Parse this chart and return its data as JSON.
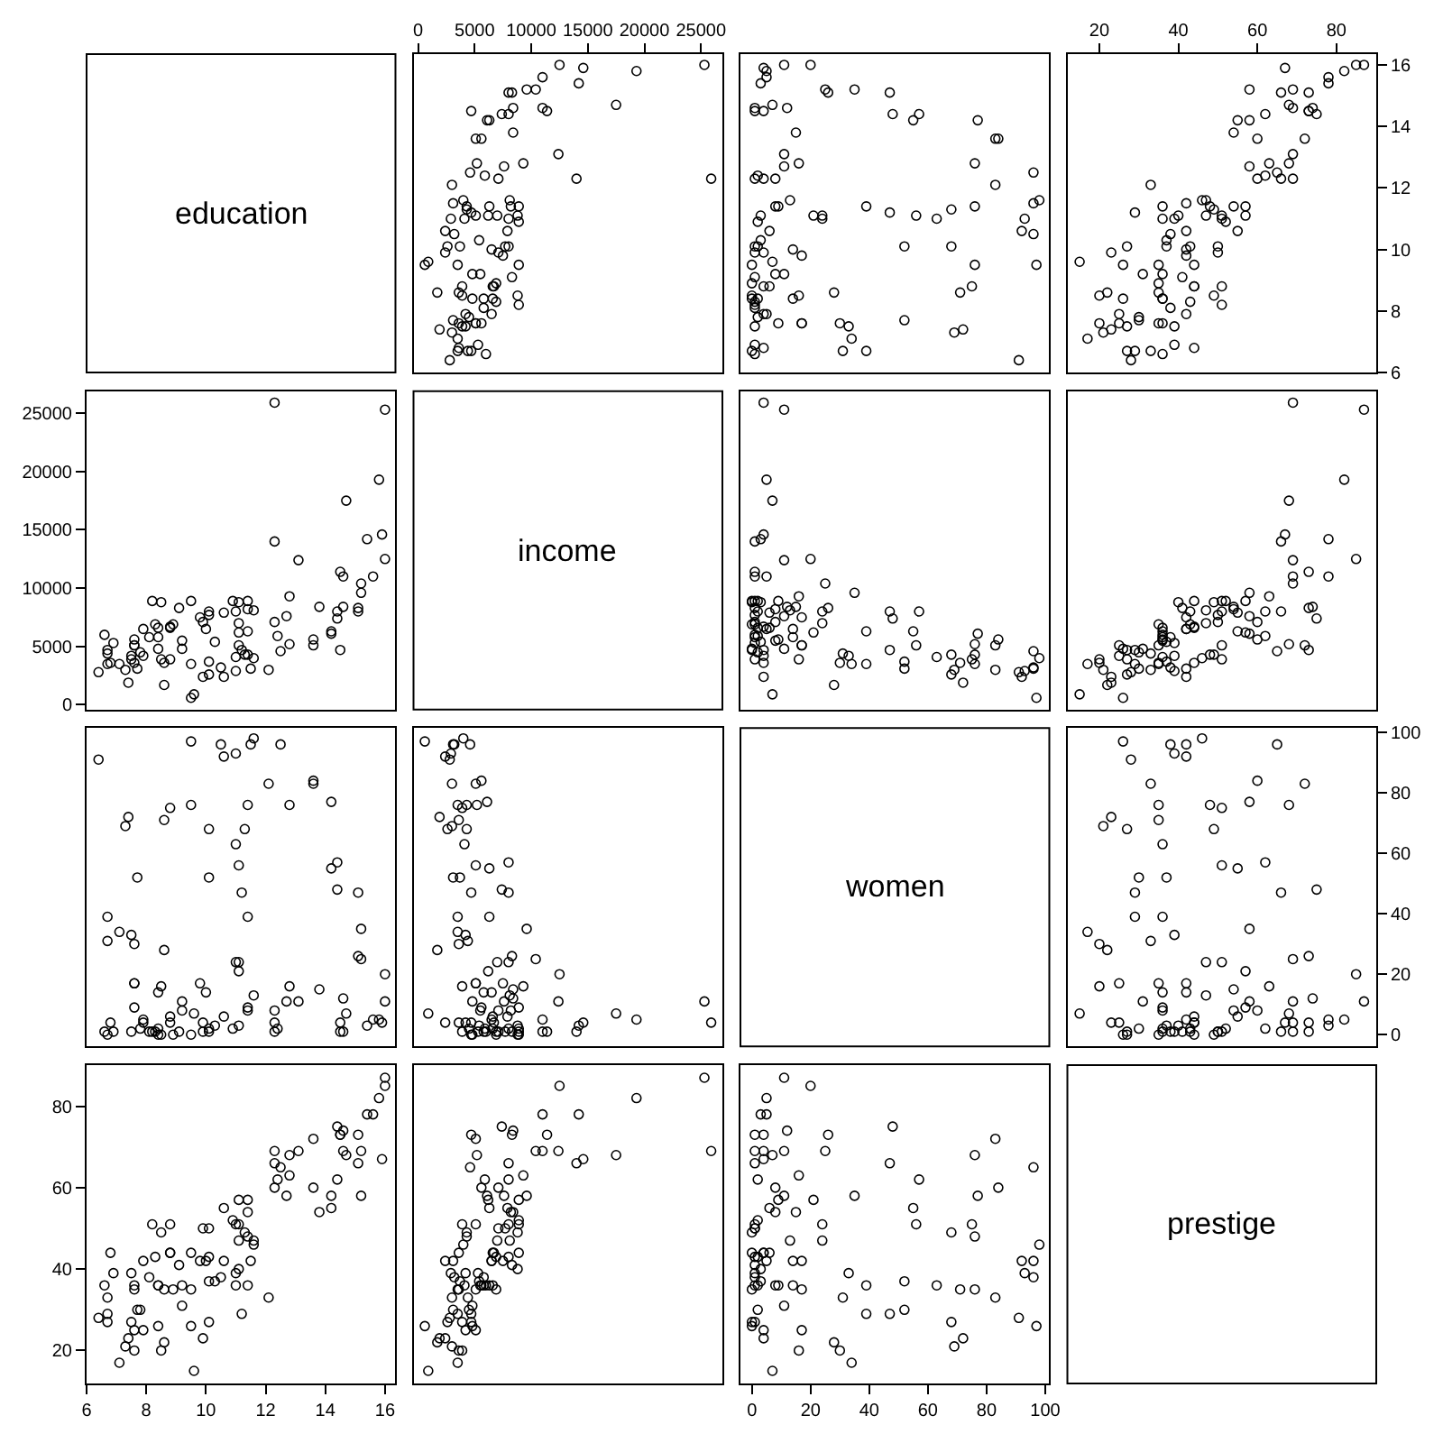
{
  "chart_data": [
    {
      "type": "other",
      "title": "education"
    },
    {
      "type": "scatter",
      "marker": "circle",
      "color": "#000000",
      "tick_labels": "x",
      "xlim": [
        -400,
        26890
      ],
      "ylim": [
        6.0,
        16.35
      ],
      "xticks": [
        0,
        5000,
        10000,
        15000,
        20000,
        25000
      ],
      "yticks": [
        6,
        8,
        10,
        12,
        14,
        16
      ],
      "x": [
        12400,
        25900,
        9300,
        8900,
        8400,
        11000,
        8300,
        14200,
        11400,
        11000,
        5900,
        7100,
        8400,
        8000,
        7400,
        6300,
        19300,
        6100,
        9600,
        4700,
        12500,
        5600,
        8000,
        25300,
        14600,
        17500,
        4600,
        3500,
        5100,
        10400,
        5200,
        6200,
        7600,
        8200,
        4000,
        3100,
        4300,
        2400,
        4300,
        4800,
        3000,
        2900,
        5500,
        3700,
        3200,
        4700,
        5100,
        6300,
        4100,
        7500,
        8800,
        2600,
        900,
        2400,
        8100,
        7000,
        8000,
        8900,
        8900,
        3100,
        3900,
        7900,
        600,
        3000,
        3500,
        3600,
        3600,
        1700,
        6900,
        4200,
        5100,
        5100,
        1900,
        4400,
        3500,
        8000,
        6700,
        6600,
        6500,
        5800,
        6600,
        3900,
        5400,
        2800,
        5800,
        7700,
        4700,
        8300,
        7100,
        8900,
        5300,
        6000,
        4500,
        6900,
        3900,
        14000,
        8800,
        5600,
        4200,
        4800,
        6500,
        3600
      ],
      "values": [
        13.1,
        12.3,
        12.8,
        11.4,
        14.6,
        15.6,
        15.1,
        15.4,
        14.5,
        14.6,
        12.4,
        12.3,
        13.8,
        14.4,
        14.4,
        14.2,
        15.8,
        14.2,
        15.2,
        14.5,
        16.0,
        13.6,
        15.1,
        16.0,
        15.9,
        14.7,
        12.5,
        9.5,
        13.6,
        15.2,
        12.8,
        11.1,
        12.7,
        11.4,
        11.6,
        11.5,
        11.3,
        10.6,
        11.4,
        9.2,
        12.1,
        11.0,
        9.2,
        10.1,
        10.5,
        11.2,
        11.1,
        11.4,
        11.0,
        9.8,
        11.1,
        10.1,
        9.6,
        9.9,
        11.6,
        11.1,
        11.0,
        9.5,
        10.9,
        7.7,
        8.5,
        10.6,
        9.5,
        7.3,
        7.1,
        7.6,
        6.8,
        8.6,
        8.9,
        7.5,
        7.6,
        7.6,
        7.4,
        6.7,
        6.7,
        10.1,
        8.8,
        8.4,
        7.9,
        8.4,
        8.8,
        8.8,
        10.3,
        6.4,
        8.1,
        10.1,
        6.7,
        9.1,
        9.9,
        8.2,
        6.9,
        6.6,
        7.8,
        8.3,
        7.5,
        12.3,
        8.5,
        7.6,
        7.9,
        8.4,
        10.0,
        8.6
      ]
    },
    {
      "type": "scatter",
      "marker": "circle",
      "color": "#000000",
      "tick_labels": false,
      "xlim": [
        -3.9,
        101.4
      ],
      "ylim": [
        6.0,
        16.35
      ],
      "xticks": [
        0,
        20,
        40,
        60,
        80,
        100
      ],
      "yticks": [
        6,
        8,
        10,
        12,
        14,
        16
      ],
      "x": [
        11,
        4,
        16,
        9,
        12,
        5,
        26,
        3,
        1,
        1,
        2,
        8,
        15,
        57,
        48,
        55,
        5,
        77,
        35,
        4,
        20,
        84,
        47,
        11,
        4,
        7,
        96,
        76,
        83,
        25,
        76,
        21,
        11,
        8,
        98,
        96,
        68,
        92,
        76,
        11,
        83,
        93,
        8,
        52,
        96,
        47,
        56,
        39,
        63,
        17,
        3,
        68,
        7,
        4,
        13,
        24,
        24,
        0,
        2,
        52,
        16,
        6,
        97,
        69,
        34,
        30,
        4,
        28,
        0,
        33,
        17,
        17,
        72,
        31,
        39,
        2,
        4,
        2,
        5,
        14,
        6,
        75,
        3,
        91,
        1,
        1,
        0,
        1,
        1,
        1,
        1,
        1,
        2,
        1,
        1,
        1,
        0,
        9,
        4,
        0,
        14,
        71
      ],
      "values": [
        13.1,
        12.3,
        12.8,
        11.4,
        14.6,
        15.6,
        15.1,
        15.4,
        14.5,
        14.6,
        12.4,
        12.3,
        13.8,
        14.4,
        14.4,
        14.2,
        15.8,
        14.2,
        15.2,
        14.5,
        16.0,
        13.6,
        15.1,
        16.0,
        15.9,
        14.7,
        12.5,
        9.5,
        13.6,
        15.2,
        12.8,
        11.1,
        12.7,
        11.4,
        11.6,
        11.5,
        11.3,
        10.6,
        11.4,
        9.2,
        12.1,
        11.0,
        9.2,
        10.1,
        10.5,
        11.2,
        11.1,
        11.4,
        11.0,
        9.8,
        11.1,
        10.1,
        9.6,
        9.9,
        11.6,
        11.1,
        11.0,
        9.5,
        10.9,
        7.7,
        8.5,
        10.6,
        9.5,
        7.3,
        7.1,
        7.6,
        6.8,
        8.6,
        8.9,
        7.5,
        7.6,
        7.6,
        7.4,
        6.7,
        6.7,
        10.1,
        8.8,
        8.4,
        7.9,
        8.4,
        8.8,
        8.8,
        10.3,
        6.4,
        8.1,
        10.1,
        6.7,
        9.1,
        9.9,
        8.2,
        6.9,
        6.6,
        7.8,
        8.3,
        7.5,
        12.3,
        8.5,
        7.6,
        7.9,
        8.4,
        10.0,
        8.6
      ]
    },
    {
      "type": "scatter",
      "marker": "circle",
      "color": "#000000",
      "xlim": [
        11.9,
        90.1
      ],
      "ylim": [
        6.0,
        16.35
      ],
      "xticks": [
        20,
        40,
        60,
        80
      ],
      "yticks": [
        6,
        8,
        10,
        12,
        14,
        16
      ],
      "x": [
        69,
        69,
        63,
        57,
        74,
        78,
        73,
        78,
        73,
        69,
        62,
        60,
        54,
        62,
        75,
        55,
        82,
        58,
        58,
        73,
        85,
        60,
        66,
        87,
        67,
        68,
        65,
        35,
        72,
        69,
        68,
        57,
        58,
        54,
        46,
        42,
        49,
        42,
        48,
        31,
        33,
        39,
        36,
        37,
        38,
        29,
        51,
        36,
        36,
        42,
        40,
        27,
        15,
        23,
        47,
        47,
        51,
        44,
        52,
        30,
        20,
        55,
        26,
        21,
        17,
        20,
        44,
        22,
        35,
        39,
        25,
        35,
        23,
        33,
        29,
        43,
        44,
        36,
        42,
        36,
        44,
        51,
        37,
        28,
        38,
        50,
        27,
        41,
        50,
        51,
        39,
        36,
        30,
        43,
        27,
        66,
        49,
        36,
        25,
        26,
        42,
        35
      ],
      "values": [
        13.1,
        12.3,
        12.8,
        11.4,
        14.6,
        15.6,
        15.1,
        15.4,
        14.5,
        14.6,
        12.4,
        12.3,
        13.8,
        14.4,
        14.4,
        14.2,
        15.8,
        14.2,
        15.2,
        14.5,
        16.0,
        13.6,
        15.1,
        16.0,
        15.9,
        14.7,
        12.5,
        9.5,
        13.6,
        15.2,
        12.8,
        11.1,
        12.7,
        11.4,
        11.6,
        11.5,
        11.3,
        10.6,
        11.4,
        9.2,
        12.1,
        11.0,
        9.2,
        10.1,
        10.5,
        11.2,
        11.1,
        11.4,
        11.0,
        9.8,
        11.1,
        10.1,
        9.6,
        9.9,
        11.6,
        11.1,
        11.0,
        9.5,
        10.9,
        7.7,
        8.5,
        10.6,
        9.5,
        7.3,
        7.1,
        7.6,
        6.8,
        8.6,
        8.9,
        7.5,
        7.6,
        7.6,
        7.4,
        6.7,
        6.7,
        10.1,
        8.8,
        8.4,
        7.9,
        8.4,
        8.8,
        8.8,
        10.3,
        6.4,
        8.1,
        10.1,
        6.7,
        9.1,
        9.9,
        8.2,
        6.9,
        6.6,
        7.8,
        8.3,
        7.5,
        12.3,
        8.5,
        7.6,
        7.9,
        8.4,
        10.0,
        8.6
      ]
    },
    {
      "type": "scatter",
      "marker": "circle",
      "color": "#000000",
      "tick_labels": "y",
      "xlim": [
        6.0,
        16.35
      ],
      "ylim": [
        -400,
        26890
      ],
      "xticks": [
        6,
        8,
        10,
        12,
        14,
        16
      ],
      "yticks": [
        0,
        5000,
        10000,
        15000,
        20000,
        25000
      ],
      "x": [
        13.1,
        12.3,
        12.8,
        11.4,
        14.6,
        15.6,
        15.1,
        15.4,
        14.5,
        14.6,
        12.4,
        12.3,
        13.8,
        14.4,
        14.4,
        14.2,
        15.8,
        14.2,
        15.2,
        14.5,
        16.0,
        13.6,
        15.1,
        16.0,
        15.9,
        14.7,
        12.5,
        9.5,
        13.6,
        15.2,
        12.8,
        11.1,
        12.7,
        11.4,
        11.6,
        11.5,
        11.3,
        10.6,
        11.4,
        9.2,
        12.1,
        11.0,
        9.2,
        10.1,
        10.5,
        11.2,
        11.1,
        11.4,
        11.0,
        9.8,
        11.1,
        10.1,
        9.6,
        9.9,
        11.6,
        11.1,
        11.0,
        9.5,
        10.9,
        7.7,
        8.5,
        10.6,
        9.5,
        7.3,
        7.1,
        7.6,
        6.8,
        8.6,
        8.9,
        7.5,
        7.6,
        7.6,
        7.4,
        6.7,
        6.7,
        10.1,
        8.8,
        8.4,
        7.9,
        8.4,
        8.8,
        8.8,
        10.3,
        6.4,
        8.1,
        10.1,
        6.7,
        9.1,
        9.9,
        8.2,
        6.9,
        6.6,
        7.8,
        8.3,
        7.5,
        12.3,
        8.5,
        7.6,
        7.9,
        8.4,
        10.0,
        8.6
      ],
      "values": [
        12400,
        25900,
        9300,
        8900,
        8400,
        11000,
        8300,
        14200,
        11400,
        11000,
        5900,
        7100,
        8400,
        8000,
        7400,
        6300,
        19300,
        6100,
        9600,
        4700,
        12500,
        5600,
        8000,
        25300,
        14600,
        17500,
        4600,
        3500,
        5100,
        10400,
        5200,
        6200,
        7600,
        8200,
        4000,
        3100,
        4300,
        2400,
        4300,
        4800,
        3000,
        2900,
        5500,
        3700,
        3200,
        4700,
        5100,
        6300,
        4100,
        7500,
        8800,
        2600,
        900,
        2400,
        8100,
        7000,
        8000,
        8900,
        8900,
        3100,
        3900,
        7900,
        600,
        3000,
        3500,
        3600,
        3600,
        1700,
        6900,
        4200,
        5100,
        5100,
        1900,
        4400,
        3500,
        8000,
        6700,
        6600,
        6500,
        5800,
        6600,
        3900,
        5400,
        2800,
        5800,
        7700,
        4700,
        8300,
        7100,
        8900,
        5300,
        6000,
        4500,
        6900,
        3900,
        14000,
        8800,
        5600,
        4200,
        4800,
        6500,
        3600
      ]
    },
    {
      "type": "other",
      "title": "income"
    },
    {
      "type": "scatter",
      "marker": "circle",
      "color": "#000000",
      "tick_labels": false,
      "xlim": [
        -3.9,
        101.4
      ],
      "ylim": [
        -400,
        26890
      ],
      "xticks": [
        0,
        20,
        40,
        60,
        80,
        100
      ],
      "yticks": [
        0,
        5000,
        10000,
        15000,
        20000,
        25000
      ],
      "x": [
        11,
        4,
        16,
        9,
        12,
        5,
        26,
        3,
        1,
        1,
        2,
        8,
        15,
        57,
        48,
        55,
        5,
        77,
        35,
        4,
        20,
        84,
        47,
        11,
        4,
        7,
        96,
        76,
        83,
        25,
        76,
        21,
        11,
        8,
        98,
        96,
        68,
        92,
        76,
        11,
        83,
        93,
        8,
        52,
        96,
        47,
        56,
        39,
        63,
        17,
        3,
        68,
        7,
        4,
        13,
        24,
        24,
        0,
        2,
        52,
        16,
        6,
        97,
        69,
        34,
        30,
        4,
        28,
        0,
        33,
        17,
        17,
        72,
        31,
        39,
        2,
        4,
        2,
        5,
        14,
        6,
        75,
        3,
        91,
        1,
        1,
        0,
        1,
        1,
        1,
        1,
        1,
        2,
        1,
        1,
        1,
        0,
        9,
        4,
        0,
        14,
        71
      ],
      "values": [
        12400,
        25900,
        9300,
        8900,
        8400,
        11000,
        8300,
        14200,
        11400,
        11000,
        5900,
        7100,
        8400,
        8000,
        7400,
        6300,
        19300,
        6100,
        9600,
        4700,
        12500,
        5600,
        8000,
        25300,
        14600,
        17500,
        4600,
        3500,
        5100,
        10400,
        5200,
        6200,
        7600,
        8200,
        4000,
        3100,
        4300,
        2400,
        4300,
        4800,
        3000,
        2900,
        5500,
        3700,
        3200,
        4700,
        5100,
        6300,
        4100,
        7500,
        8800,
        2600,
        900,
        2400,
        8100,
        7000,
        8000,
        8900,
        8900,
        3100,
        3900,
        7900,
        600,
        3000,
        3500,
        3600,
        3600,
        1700,
        6900,
        4200,
        5100,
        5100,
        1900,
        4400,
        3500,
        8000,
        6700,
        6600,
        6500,
        5800,
        6600,
        3900,
        5400,
        2800,
        5800,
        7700,
        4700,
        8300,
        7100,
        8900,
        5300,
        6000,
        4500,
        6900,
        3900,
        14000,
        8800,
        5600,
        4200,
        4800,
        6500,
        3600
      ]
    },
    {
      "type": "scatter",
      "marker": "circle",
      "color": "#000000",
      "tick_labels": false,
      "xlim": [
        11.9,
        90.1
      ],
      "ylim": [
        -400,
        26890
      ],
      "xticks": [
        20,
        40,
        60,
        80
      ],
      "yticks": [
        0,
        5000,
        10000,
        15000,
        20000,
        25000
      ],
      "x": [
        69,
        69,
        63,
        57,
        74,
        78,
        73,
        78,
        73,
        69,
        62,
        60,
        54,
        62,
        75,
        55,
        82,
        58,
        58,
        73,
        85,
        60,
        66,
        87,
        67,
        68,
        65,
        35,
        72,
        69,
        68,
        57,
        58,
        54,
        46,
        42,
        49,
        42,
        48,
        31,
        33,
        39,
        36,
        37,
        38,
        29,
        51,
        36,
        36,
        42,
        40,
        27,
        15,
        23,
        47,
        47,
        51,
        44,
        52,
        30,
        20,
        55,
        26,
        21,
        17,
        20,
        44,
        22,
        35,
        39,
        25,
        35,
        23,
        33,
        29,
        43,
        44,
        36,
        42,
        36,
        44,
        51,
        37,
        28,
        38,
        50,
        27,
        41,
        50,
        51,
        39,
        36,
        30,
        43,
        27,
        66,
        49,
        36,
        25,
        26,
        42,
        35
      ],
      "values": [
        12400,
        25900,
        9300,
        8900,
        8400,
        11000,
        8300,
        14200,
        11400,
        11000,
        5900,
        7100,
        8400,
        8000,
        7400,
        6300,
        19300,
        6100,
        9600,
        4700,
        12500,
        5600,
        8000,
        25300,
        14600,
        17500,
        4600,
        3500,
        5100,
        10400,
        5200,
        6200,
        7600,
        8200,
        4000,
        3100,
        4300,
        2400,
        4300,
        4800,
        3000,
        2900,
        5500,
        3700,
        3200,
        4700,
        5100,
        6300,
        4100,
        7500,
        8800,
        2600,
        900,
        2400,
        8100,
        7000,
        8000,
        8900,
        8900,
        3100,
        3900,
        7900,
        600,
        3000,
        3500,
        3600,
        3600,
        1700,
        6900,
        4200,
        5100,
        5100,
        1900,
        4400,
        3500,
        8000,
        6700,
        6600,
        6500,
        5800,
        6600,
        3900,
        5400,
        2800,
        5800,
        7700,
        4700,
        8300,
        7100,
        8900,
        5300,
        6000,
        4500,
        6900,
        3900,
        14000,
        8800,
        5600,
        4200,
        4800,
        6500,
        3600
      ]
    },
    {
      "type": "scatter",
      "marker": "circle",
      "color": "#000000",
      "tick_labels": false,
      "xlim": [
        6.0,
        16.35
      ],
      "ylim": [
        -3.9,
        101.4
      ],
      "xticks": [
        6,
        8,
        10,
        12,
        14,
        16
      ],
      "yticks": [
        0,
        20,
        40,
        60,
        80,
        100
      ],
      "x": [
        13.1,
        12.3,
        12.8,
        11.4,
        14.6,
        15.6,
        15.1,
        15.4,
        14.5,
        14.6,
        12.4,
        12.3,
        13.8,
        14.4,
        14.4,
        14.2,
        15.8,
        14.2,
        15.2,
        14.5,
        16.0,
        13.6,
        15.1,
        16.0,
        15.9,
        14.7,
        12.5,
        9.5,
        13.6,
        15.2,
        12.8,
        11.1,
        12.7,
        11.4,
        11.6,
        11.5,
        11.3,
        10.6,
        11.4,
        9.2,
        12.1,
        11.0,
        9.2,
        10.1,
        10.5,
        11.2,
        11.1,
        11.4,
        11.0,
        9.8,
        11.1,
        10.1,
        9.6,
        9.9,
        11.6,
        11.1,
        11.0,
        9.5,
        10.9,
        7.7,
        8.5,
        10.6,
        9.5,
        7.3,
        7.1,
        7.6,
        6.8,
        8.6,
        8.9,
        7.5,
        7.6,
        7.6,
        7.4,
        6.7,
        6.7,
        10.1,
        8.8,
        8.4,
        7.9,
        8.4,
        8.8,
        8.8,
        10.3,
        6.4,
        8.1,
        10.1,
        6.7,
        9.1,
        9.9,
        8.2,
        6.9,
        6.6,
        7.8,
        8.3,
        7.5,
        12.3,
        8.5,
        7.6,
        7.9,
        8.4,
        10.0,
        8.6
      ],
      "values": [
        11,
        4,
        16,
        9,
        12,
        5,
        26,
        3,
        1,
        1,
        2,
        8,
        15,
        57,
        48,
        55,
        5,
        77,
        35,
        4,
        20,
        84,
        47,
        11,
        4,
        7,
        96,
        76,
        83,
        25,
        76,
        21,
        11,
        8,
        98,
        96,
        68,
        92,
        76,
        11,
        83,
        93,
        8,
        52,
        96,
        47,
        56,
        39,
        63,
        17,
        3,
        68,
        7,
        4,
        13,
        24,
        24,
        0,
        2,
        52,
        16,
        6,
        97,
        69,
        34,
        30,
        4,
        28,
        0,
        33,
        17,
        17,
        72,
        31,
        39,
        2,
        4,
        2,
        5,
        14,
        6,
        75,
        3,
        91,
        1,
        1,
        0,
        1,
        1,
        1,
        1,
        1,
        2,
        1,
        1,
        1,
        0,
        9,
        4,
        0,
        14,
        71
      ]
    },
    {
      "type": "scatter",
      "marker": "circle",
      "color": "#000000",
      "tick_labels": false,
      "xlim": [
        -400,
        26890
      ],
      "ylim": [
        -3.9,
        101.4
      ],
      "xticks": [
        0,
        5000,
        10000,
        15000,
        20000,
        25000
      ],
      "yticks": [
        0,
        20,
        40,
        60,
        80,
        100
      ],
      "x": [
        12400,
        25900,
        9300,
        8900,
        8400,
        11000,
        8300,
        14200,
        11400,
        11000,
        5900,
        7100,
        8400,
        8000,
        7400,
        6300,
        19300,
        6100,
        9600,
        4700,
        12500,
        5600,
        8000,
        25300,
        14600,
        17500,
        4600,
        3500,
        5100,
        10400,
        5200,
        6200,
        7600,
        8200,
        4000,
        3100,
        4300,
        2400,
        4300,
        4800,
        3000,
        2900,
        5500,
        3700,
        3200,
        4700,
        5100,
        6300,
        4100,
        7500,
        8800,
        2600,
        900,
        2400,
        8100,
        7000,
        8000,
        8900,
        8900,
        3100,
        3900,
        7900,
        600,
        3000,
        3500,
        3600,
        3600,
        1700,
        6900,
        4200,
        5100,
        5100,
        1900,
        4400,
        3500,
        8000,
        6700,
        6600,
        6500,
        5800,
        6600,
        3900,
        5400,
        2800,
        5800,
        7700,
        4700,
        8300,
        7100,
        8900,
        5300,
        6000,
        4500,
        6900,
        3900,
        14000,
        8800,
        5600,
        4200,
        4800,
        6500,
        3600
      ],
      "values": [
        11,
        4,
        16,
        9,
        12,
        5,
        26,
        3,
        1,
        1,
        2,
        8,
        15,
        57,
        48,
        55,
        5,
        77,
        35,
        4,
        20,
        84,
        47,
        11,
        4,
        7,
        96,
        76,
        83,
        25,
        76,
        21,
        11,
        8,
        98,
        96,
        68,
        92,
        76,
        11,
        83,
        93,
        8,
        52,
        96,
        47,
        56,
        39,
        63,
        17,
        3,
        68,
        7,
        4,
        13,
        24,
        24,
        0,
        2,
        52,
        16,
        6,
        97,
        69,
        34,
        30,
        4,
        28,
        0,
        33,
        17,
        17,
        72,
        31,
        39,
        2,
        4,
        2,
        5,
        14,
        6,
        75,
        3,
        91,
        1,
        1,
        0,
        1,
        1,
        1,
        1,
        1,
        2,
        1,
        1,
        1,
        0,
        9,
        4,
        0,
        14,
        71
      ]
    },
    {
      "type": "other",
      "title": "women"
    },
    {
      "type": "scatter",
      "marker": "circle",
      "color": "#000000",
      "tick_labels": "y",
      "xlim": [
        11.9,
        90.1
      ],
      "ylim": [
        -3.9,
        101.4
      ],
      "xticks": [
        20,
        40,
        60,
        80
      ],
      "yticks": [
        0,
        20,
        40,
        60,
        80,
        100
      ],
      "x": [
        69,
        69,
        63,
        57,
        74,
        78,
        73,
        78,
        73,
        69,
        62,
        60,
        54,
        62,
        75,
        55,
        82,
        58,
        58,
        73,
        85,
        60,
        66,
        87,
        67,
        68,
        65,
        35,
        72,
        69,
        68,
        57,
        58,
        54,
        46,
        42,
        49,
        42,
        48,
        31,
        33,
        39,
        36,
        37,
        38,
        29,
        51,
        36,
        36,
        42,
        40,
        27,
        15,
        23,
        47,
        47,
        51,
        44,
        52,
        30,
        20,
        55,
        26,
        21,
        17,
        20,
        44,
        22,
        35,
        39,
        25,
        35,
        23,
        33,
        29,
        43,
        44,
        36,
        42,
        36,
        44,
        51,
        37,
        28,
        38,
        50,
        27,
        41,
        50,
        51,
        39,
        36,
        30,
        43,
        27,
        66,
        49,
        36,
        25,
        26,
        42,
        35
      ],
      "values": [
        11,
        4,
        16,
        9,
        12,
        5,
        26,
        3,
        1,
        1,
        2,
        8,
        15,
        57,
        48,
        55,
        5,
        77,
        35,
        4,
        20,
        84,
        47,
        11,
        4,
        7,
        96,
        76,
        83,
        25,
        76,
        21,
        11,
        8,
        98,
        96,
        68,
        92,
        76,
        11,
        83,
        93,
        8,
        52,
        96,
        47,
        56,
        39,
        63,
        17,
        3,
        68,
        7,
        4,
        13,
        24,
        24,
        0,
        2,
        52,
        16,
        6,
        97,
        69,
        34,
        30,
        4,
        28,
        0,
        33,
        17,
        17,
        72,
        31,
        39,
        2,
        4,
        2,
        5,
        14,
        6,
        75,
        3,
        91,
        1,
        1,
        0,
        1,
        1,
        1,
        1,
        1,
        2,
        1,
        1,
        1,
        0,
        9,
        4,
        0,
        14,
        71
      ]
    },
    {
      "type": "scatter",
      "marker": "circle",
      "color": "#000000",
      "xlim": [
        6.0,
        16.35
      ],
      "ylim": [
        11.9,
        90.1
      ],
      "xticks": [
        6,
        8,
        10,
        12,
        14,
        16
      ],
      "yticks": [
        20,
        40,
        60,
        80
      ],
      "x": [
        13.1,
        12.3,
        12.8,
        11.4,
        14.6,
        15.6,
        15.1,
        15.4,
        14.5,
        14.6,
        12.4,
        12.3,
        13.8,
        14.4,
        14.4,
        14.2,
        15.8,
        14.2,
        15.2,
        14.5,
        16.0,
        13.6,
        15.1,
        16.0,
        15.9,
        14.7,
        12.5,
        9.5,
        13.6,
        15.2,
        12.8,
        11.1,
        12.7,
        11.4,
        11.6,
        11.5,
        11.3,
        10.6,
        11.4,
        9.2,
        12.1,
        11.0,
        9.2,
        10.1,
        10.5,
        11.2,
        11.1,
        11.4,
        11.0,
        9.8,
        11.1,
        10.1,
        9.6,
        9.9,
        11.6,
        11.1,
        11.0,
        9.5,
        10.9,
        7.7,
        8.5,
        10.6,
        9.5,
        7.3,
        7.1,
        7.6,
        6.8,
        8.6,
        8.9,
        7.5,
        7.6,
        7.6,
        7.4,
        6.7,
        6.7,
        10.1,
        8.8,
        8.4,
        7.9,
        8.4,
        8.8,
        8.8,
        10.3,
        6.4,
        8.1,
        10.1,
        6.7,
        9.1,
        9.9,
        8.2,
        6.9,
        6.6,
        7.8,
        8.3,
        7.5,
        12.3,
        8.5,
        7.6,
        7.9,
        8.4,
        10.0,
        8.6
      ],
      "values": [
        69,
        69,
        63,
        57,
        74,
        78,
        73,
        78,
        73,
        69,
        62,
        60,
        54,
        62,
        75,
        55,
        82,
        58,
        58,
        73,
        85,
        60,
        66,
        87,
        67,
        68,
        65,
        35,
        72,
        69,
        68,
        57,
        58,
        54,
        46,
        42,
        49,
        42,
        48,
        31,
        33,
        39,
        36,
        37,
        38,
        29,
        51,
        36,
        36,
        42,
        40,
        27,
        15,
        23,
        47,
        47,
        51,
        44,
        52,
        30,
        20,
        55,
        26,
        21,
        17,
        20,
        44,
        22,
        35,
        39,
        25,
        35,
        23,
        33,
        29,
        43,
        44,
        36,
        42,
        36,
        44,
        51,
        37,
        28,
        38,
        50,
        27,
        41,
        50,
        51,
        39,
        36,
        30,
        43,
        27,
        66,
        49,
        36,
        25,
        26,
        42,
        35
      ]
    },
    {
      "type": "scatter",
      "marker": "circle",
      "color": "#000000",
      "tick_labels": false,
      "xlim": [
        -400,
        26890
      ],
      "ylim": [
        11.9,
        90.1
      ],
      "xticks": [
        0,
        5000,
        10000,
        15000,
        20000,
        25000
      ],
      "yticks": [
        20,
        40,
        60,
        80
      ],
      "x": [
        12400,
        25900,
        9300,
        8900,
        8400,
        11000,
        8300,
        14200,
        11400,
        11000,
        5900,
        7100,
        8400,
        8000,
        7400,
        6300,
        19300,
        6100,
        9600,
        4700,
        12500,
        5600,
        8000,
        25300,
        14600,
        17500,
        4600,
        3500,
        5100,
        10400,
        5200,
        6200,
        7600,
        8200,
        4000,
        3100,
        4300,
        2400,
        4300,
        4800,
        3000,
        2900,
        5500,
        3700,
        3200,
        4700,
        5100,
        6300,
        4100,
        7500,
        8800,
        2600,
        900,
        2400,
        8100,
        7000,
        8000,
        8900,
        8900,
        3100,
        3900,
        7900,
        600,
        3000,
        3500,
        3600,
        3600,
        1700,
        6900,
        4200,
        5100,
        5100,
        1900,
        4400,
        3500,
        8000,
        6700,
        6600,
        6500,
        5800,
        6600,
        3900,
        5400,
        2800,
        5800,
        7700,
        4700,
        8300,
        7100,
        8900,
        5300,
        6000,
        4500,
        6900,
        3900,
        14000,
        8800,
        5600,
        4200,
        4800,
        6500,
        3600
      ],
      "values": [
        69,
        69,
        63,
        57,
        74,
        78,
        73,
        78,
        73,
        69,
        62,
        60,
        54,
        62,
        75,
        55,
        82,
        58,
        58,
        73,
        85,
        60,
        66,
        87,
        67,
        68,
        65,
        35,
        72,
        69,
        68,
        57,
        58,
        54,
        46,
        42,
        49,
        42,
        48,
        31,
        33,
        39,
        36,
        37,
        38,
        29,
        51,
        36,
        36,
        42,
        40,
        27,
        15,
        23,
        47,
        47,
        51,
        44,
        52,
        30,
        20,
        55,
        26,
        21,
        17,
        20,
        44,
        22,
        35,
        39,
        25,
        35,
        23,
        33,
        29,
        43,
        44,
        36,
        42,
        36,
        44,
        51,
        37,
        28,
        38,
        50,
        27,
        41,
        50,
        51,
        39,
        36,
        30,
        43,
        27,
        66,
        49,
        36,
        25,
        26,
        42,
        35
      ]
    },
    {
      "type": "scatter",
      "marker": "circle",
      "color": "#000000",
      "tick_labels": "x",
      "xlim": [
        -3.9,
        101.4
      ],
      "ylim": [
        11.9,
        90.1
      ],
      "xticks": [
        0,
        20,
        40,
        60,
        80,
        100
      ],
      "yticks": [
        20,
        40,
        60,
        80
      ],
      "x": [
        11,
        4,
        16,
        9,
        12,
        5,
        26,
        3,
        1,
        1,
        2,
        8,
        15,
        57,
        48,
        55,
        5,
        77,
        35,
        4,
        20,
        84,
        47,
        11,
        4,
        7,
        96,
        76,
        83,
        25,
        76,
        21,
        11,
        8,
        98,
        96,
        68,
        92,
        76,
        11,
        83,
        93,
        8,
        52,
        96,
        47,
        56,
        39,
        63,
        17,
        3,
        68,
        7,
        4,
        13,
        24,
        24,
        0,
        2,
        52,
        16,
        6,
        97,
        69,
        34,
        30,
        4,
        28,
        0,
        33,
        17,
        17,
        72,
        31,
        39,
        2,
        4,
        2,
        5,
        14,
        6,
        75,
        3,
        91,
        1,
        1,
        0,
        1,
        1,
        1,
        1,
        1,
        2,
        1,
        1,
        1,
        0,
        9,
        4,
        0,
        14,
        71
      ],
      "values": [
        69,
        69,
        63,
        57,
        74,
        78,
        73,
        78,
        73,
        69,
        62,
        60,
        54,
        62,
        75,
        55,
        82,
        58,
        58,
        73,
        85,
        60,
        66,
        87,
        67,
        68,
        65,
        35,
        72,
        69,
        68,
        57,
        58,
        54,
        46,
        42,
        49,
        42,
        48,
        31,
        33,
        39,
        36,
        37,
        38,
        29,
        51,
        36,
        36,
        42,
        40,
        27,
        15,
        23,
        47,
        47,
        51,
        44,
        52,
        30,
        20,
        55,
        26,
        21,
        17,
        20,
        44,
        22,
        35,
        39,
        25,
        35,
        23,
        33,
        29,
        43,
        44,
        36,
        42,
        36,
        44,
        51,
        37,
        28,
        38,
        50,
        27,
        41,
        50,
        51,
        39,
        36,
        30,
        43,
        27,
        66,
        49,
        36,
        25,
        26,
        42,
        35
      ]
    },
    {
      "type": "other",
      "title": "prestige"
    }
  ]
}
